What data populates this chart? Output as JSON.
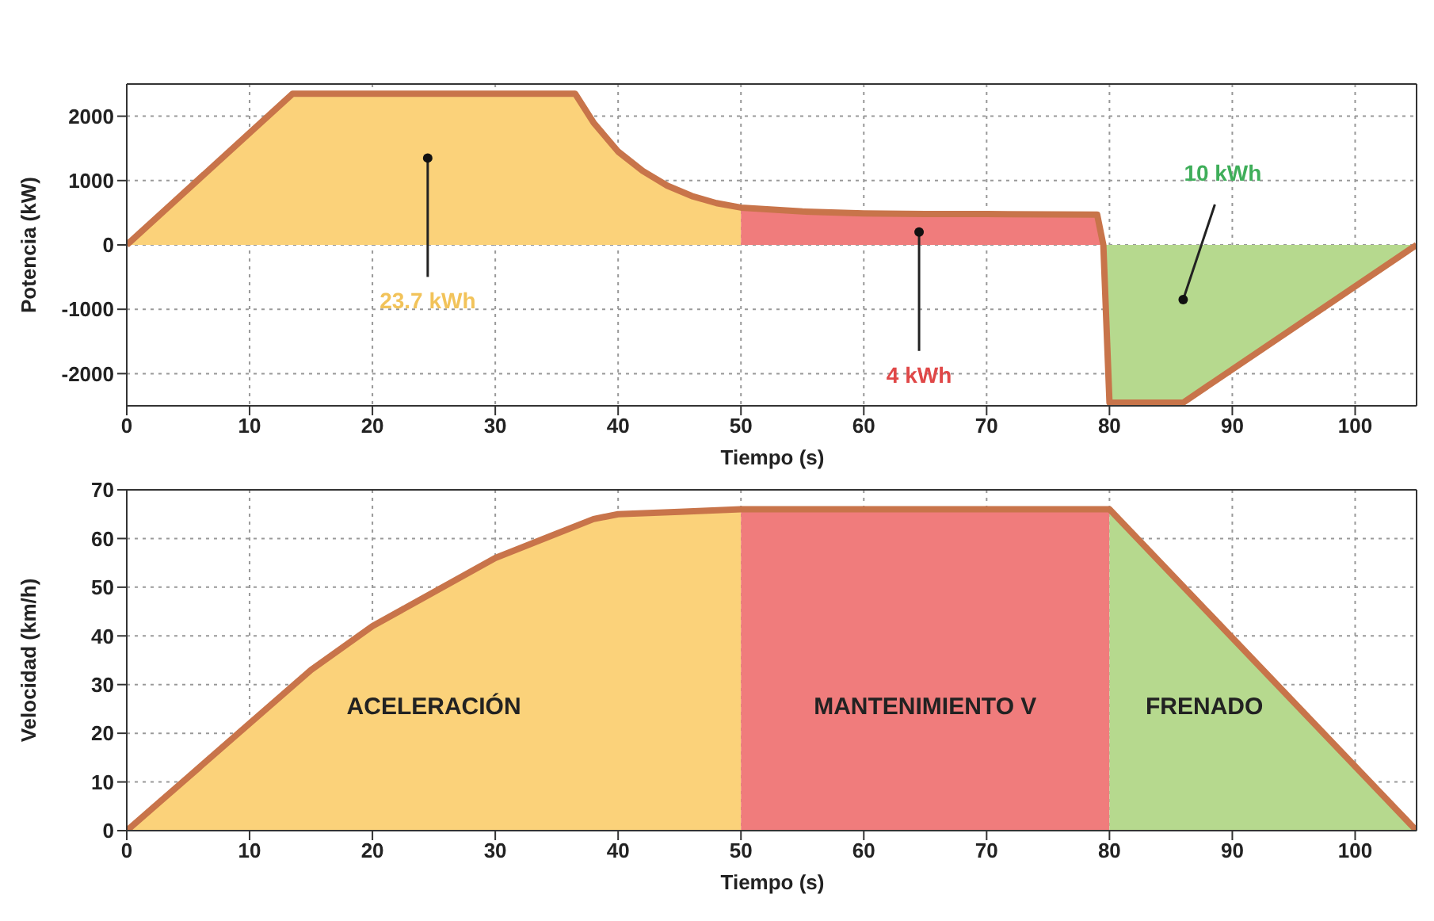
{
  "chart_data": [
    {
      "type": "area",
      "xlabel": "Tiempo (s)",
      "ylabel": "Potencia (kW)",
      "xlim": [
        0,
        105
      ],
      "ylim": [
        -2500,
        2500
      ],
      "xticks": [
        0,
        10,
        20,
        30,
        40,
        50,
        60,
        70,
        80,
        90,
        100
      ],
      "yticks": [
        -2000,
        -1000,
        0,
        1000,
        2000
      ],
      "grid": true,
      "series": [
        {
          "color": "#fbd27a",
          "x": [
            0,
            13.5,
            36.5,
            38,
            40,
            42,
            44,
            46,
            48,
            50
          ],
          "values": [
            0,
            2350,
            2350,
            1900,
            1450,
            1150,
            920,
            760,
            650,
            580
          ]
        },
        {
          "color": "#f07c7c",
          "x": [
            50,
            55,
            60,
            65,
            70,
            79,
            79.5
          ],
          "values": [
            580,
            520,
            490,
            480,
            480,
            470,
            0
          ]
        },
        {
          "color": "#b6d98e",
          "x": [
            79.5,
            80,
            86,
            105
          ],
          "values": [
            0,
            -2450,
            -2450,
            0
          ]
        },
        {
          "type": "line",
          "color": "#c8744a",
          "x": [
            0,
            13.5,
            36.5,
            38,
            40,
            42,
            44,
            46,
            48,
            50,
            55,
            60,
            65,
            70,
            79,
            79.5,
            80,
            86,
            105
          ],
          "values": [
            0,
            2350,
            2350,
            1900,
            1450,
            1150,
            920,
            760,
            650,
            580,
            520,
            490,
            480,
            480,
            470,
            0,
            -2450,
            -2450,
            0
          ]
        }
      ],
      "annotations": [
        {
          "text": "23.7 kWh",
          "x": 24.5,
          "y": 1350
        },
        {
          "text": "4 kWh",
          "x": 64.5,
          "y": 200
        },
        {
          "text": "10 kWh",
          "x": 86,
          "y": -850
        }
      ]
    },
    {
      "type": "area",
      "xlabel": "Tiempo (s)",
      "ylabel": "Velocidad (km/h)",
      "xlim": [
        0,
        105
      ],
      "ylim": [
        0,
        70
      ],
      "xticks": [
        0,
        10,
        20,
        30,
        40,
        50,
        60,
        70,
        80,
        90,
        100
      ],
      "yticks": [
        0,
        10,
        20,
        30,
        40,
        50,
        60,
        70
      ],
      "grid": true,
      "series": [
        {
          "color": "#fbd27a",
          "x": [
            0,
            5,
            10,
            15,
            20,
            25,
            30,
            35,
            38,
            40,
            45,
            50
          ],
          "values": [
            0,
            11,
            22,
            33,
            42,
            49,
            56,
            61,
            64,
            65,
            65.5,
            66
          ]
        },
        {
          "color": "#f07c7c",
          "x": [
            50,
            80
          ],
          "values": [
            66,
            66
          ]
        },
        {
          "color": "#b6d98e",
          "x": [
            80,
            105
          ],
          "values": [
            66,
            0
          ]
        },
        {
          "type": "line",
          "color": "#c8744a",
          "x": [
            0,
            5,
            10,
            15,
            20,
            25,
            30,
            35,
            38,
            40,
            45,
            50,
            80,
            105
          ],
          "values": [
            0,
            11,
            22,
            33,
            42,
            49,
            56,
            61,
            64,
            65,
            65.5,
            66,
            66,
            0
          ]
        }
      ],
      "annotations": [
        "ACELERACIÓN",
        "MANTENIMIENTO V",
        "FRENADO"
      ]
    }
  ]
}
